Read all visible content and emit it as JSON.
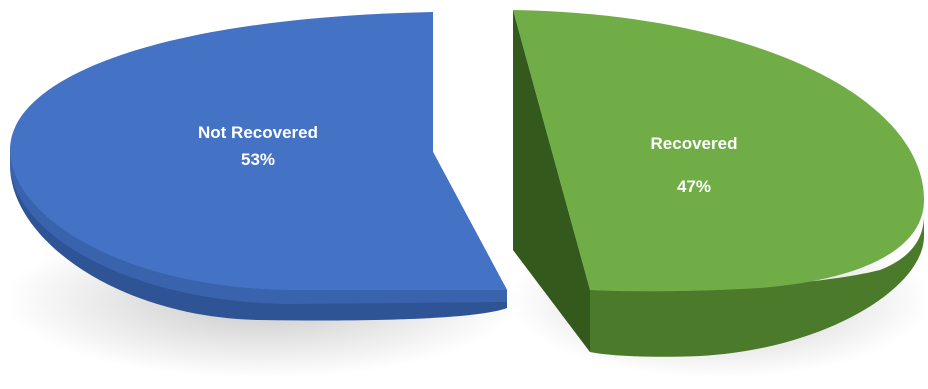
{
  "chart_data": {
    "type": "pie",
    "title": "",
    "style": "3d-exploded",
    "legend": "none",
    "slices": [
      {
        "label": "Not Recovered",
        "value": 53,
        "value_label": "53%",
        "color": "#4472C4",
        "side_color": "#2E5496"
      },
      {
        "label": "Recovered",
        "value": 47,
        "value_label": "47%",
        "color": "#70AD47",
        "side_color": "#3F6A22"
      }
    ]
  }
}
